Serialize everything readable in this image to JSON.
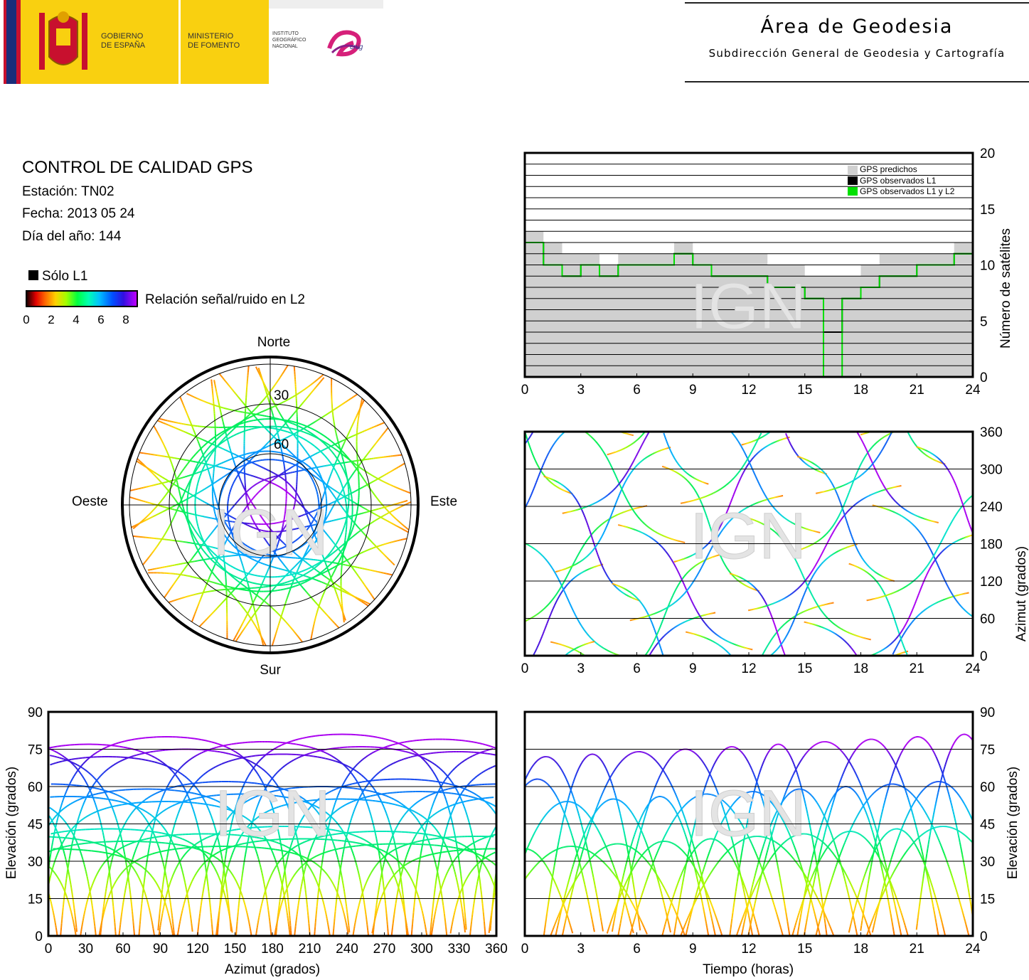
{
  "header": {
    "gov_line1": "GOBIERNO",
    "gov_line2": "DE ESPAÑA",
    "ministry_line1": "MINISTERIO",
    "ministry_line2": "DE FOMENTO",
    "ign_line1": "INSTITUTO",
    "ign_line2": "GEOGRÁFICO",
    "ign_line3": "NACIONAL",
    "cnig": "cnig",
    "title": "Área de Geodesia",
    "subtitle": "Subdirección General de Geodesia y Cartografía"
  },
  "info": {
    "title": "CONTROL DE CALIDAD GPS",
    "station": "Estación: TN02",
    "date": "Fecha: 2013 05 24",
    "doy": "Día del año: 144"
  },
  "legend": {
    "l1_only": "Sólo L1",
    "snr_label": "Relación señal/ruido en L2",
    "snr_ticks": [
      "0",
      "2",
      "4",
      "6",
      "8"
    ]
  },
  "watermark": "IGN",
  "colors": {
    "predicted": "#d0d0d0",
    "observed_l1": "#000000",
    "observed_l1_l2": "#00e000",
    "grid": "#000000"
  },
  "chart_data": [
    {
      "id": "satellite-count",
      "type": "bar",
      "xlabel": "",
      "ylabel": "Número de satélites",
      "xlim": [
        0,
        24
      ],
      "ylim": [
        0,
        20
      ],
      "x_ticks": [
        "0",
        "3",
        "6",
        "9",
        "12",
        "15",
        "18",
        "21",
        "24"
      ],
      "y_ticks": [
        "0",
        "5",
        "10",
        "15",
        "20"
      ],
      "legend_position": "top-right",
      "series": [
        {
          "name": "GPS predichos",
          "x": [
            0,
            1,
            2,
            3,
            4,
            5,
            6,
            7,
            8,
            9,
            10,
            11,
            12,
            13,
            14,
            15,
            16,
            17,
            18,
            19,
            20,
            21,
            22,
            23,
            24
          ],
          "values": [
            13,
            12,
            11,
            11,
            10,
            11,
            11,
            11,
            12,
            11,
            11,
            11,
            11,
            10,
            10,
            9,
            9,
            9,
            10,
            11,
            11,
            11,
            11,
            12,
            13
          ]
        },
        {
          "name": "GPS observados L1",
          "x": [
            0,
            1,
            2,
            3,
            4,
            5,
            6,
            7,
            8,
            9,
            10,
            11,
            12,
            13,
            14,
            15,
            16,
            17,
            18,
            19,
            20,
            21,
            22,
            23,
            24
          ],
          "values": [
            12,
            10,
            9,
            10,
            9,
            10,
            10,
            10,
            11,
            10,
            9,
            9,
            9,
            8,
            8,
            7,
            4,
            7,
            8,
            9,
            9,
            10,
            10,
            11,
            12
          ]
        },
        {
          "name": "GPS observados L1 y L2",
          "x": [
            0,
            1,
            2,
            3,
            4,
            5,
            6,
            7,
            8,
            9,
            10,
            11,
            12,
            13,
            14,
            15,
            16,
            17,
            18,
            19,
            20,
            21,
            22,
            23,
            24
          ],
          "values": [
            12,
            10,
            9,
            10,
            9,
            10,
            10,
            10,
            11,
            10,
            9,
            9,
            9,
            8,
            8,
            7,
            0,
            7,
            8,
            9,
            9,
            10,
            10,
            11,
            12
          ]
        }
      ]
    },
    {
      "id": "skyplot",
      "type": "scatter",
      "title": "",
      "direction_labels": {
        "north": "Norte",
        "south": "Sur",
        "east": "Este",
        "west": "Oeste"
      },
      "elevation_rings": [
        "30",
        "60"
      ]
    },
    {
      "id": "azimuth-vs-time",
      "type": "line",
      "xlabel": "",
      "ylabel": "Azimut (grados)",
      "xlim": [
        0,
        24
      ],
      "ylim": [
        0,
        360
      ],
      "x_ticks": [
        "0",
        "3",
        "6",
        "9",
        "12",
        "15",
        "18",
        "21",
        "24"
      ],
      "y_ticks": [
        "0",
        "60",
        "120",
        "180",
        "240",
        "300",
        "360"
      ]
    },
    {
      "id": "elevation-vs-azimuth",
      "type": "line",
      "xlabel": "Azimut (grados)",
      "ylabel": "Elevación (grados)",
      "xlim": [
        0,
        360
      ],
      "ylim": [
        0,
        90
      ],
      "x_ticks": [
        "0",
        "30",
        "60",
        "90",
        "120",
        "150",
        "180",
        "210",
        "240",
        "270",
        "300",
        "330",
        "360"
      ],
      "y_ticks": [
        "0",
        "15",
        "30",
        "45",
        "60",
        "75",
        "90"
      ]
    },
    {
      "id": "elevation-vs-time",
      "type": "line",
      "xlabel": "Tiempo (horas)",
      "ylabel": "Elevación (grados)",
      "xlim": [
        0,
        24
      ],
      "ylim": [
        0,
        90
      ],
      "x_ticks": [
        "0",
        "3",
        "6",
        "9",
        "12",
        "15",
        "18",
        "21",
        "24"
      ],
      "y_ticks": [
        "0",
        "15",
        "30",
        "45",
        "60",
        "75",
        "90"
      ]
    }
  ]
}
